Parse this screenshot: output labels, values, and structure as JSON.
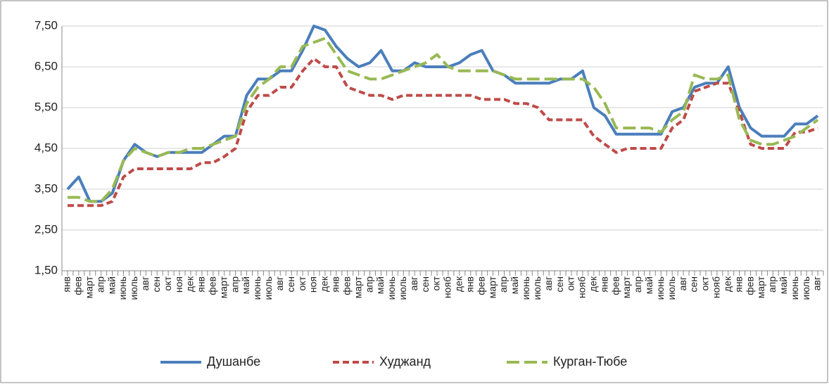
{
  "chart_data": {
    "type": "line",
    "categories": [
      "янв",
      "фев",
      "март",
      "апр",
      "май",
      "июнь",
      "июль",
      "авг",
      "сен",
      "окт",
      "ноя",
      "дек",
      "янв",
      "фев",
      "март",
      "апр",
      "май",
      "июнь",
      "июль",
      "авг",
      "сен",
      "окт",
      "ноя",
      "дек",
      "янв",
      "фев",
      "март",
      "апр",
      "май",
      "июнь",
      "июль",
      "авг",
      "сен",
      "окт",
      "нояб",
      "дек",
      "янв",
      "фев",
      "март",
      "апр",
      "май",
      "июнь",
      "июль",
      "авг",
      "сен",
      "окт",
      "нояб",
      "дек",
      "янв",
      "фев",
      "март",
      "апр",
      "май",
      "июнь",
      "июль",
      "авг",
      "сен",
      "окт",
      "нояб",
      "дек",
      "янв",
      "фев",
      "март",
      "апр",
      "май",
      "июнь",
      "июль",
      "авг"
    ],
    "series": [
      {
        "name": "Душанбе",
        "color": "#4a7ebb",
        "values": [
          3.5,
          3.8,
          3.2,
          3.2,
          3.4,
          4.2,
          4.6,
          4.4,
          4.3,
          4.4,
          4.4,
          4.4,
          4.4,
          4.6,
          4.8,
          4.8,
          5.8,
          6.2,
          6.2,
          6.4,
          6.4,
          6.9,
          7.5,
          7.4,
          7.0,
          6.7,
          6.5,
          6.6,
          6.9,
          6.4,
          6.4,
          6.6,
          6.5,
          6.5,
          6.5,
          6.6,
          6.8,
          6.9,
          6.4,
          6.3,
          6.1,
          6.1,
          6.1,
          6.1,
          6.2,
          6.2,
          6.4,
          5.5,
          5.3,
          4.85,
          4.85,
          4.85,
          4.85,
          4.85,
          5.4,
          5.5,
          6.0,
          6.1,
          6.1,
          6.5,
          5.5,
          5.0,
          4.8,
          4.8,
          4.8,
          5.1,
          5.1,
          5.3
        ]
      },
      {
        "name": "Худжанд",
        "color": "#be4b48",
        "values": [
          3.1,
          3.1,
          3.1,
          3.1,
          3.2,
          3.8,
          4.0,
          4.0,
          4.0,
          4.0,
          4.0,
          4.0,
          4.15,
          4.15,
          4.3,
          4.5,
          5.4,
          5.8,
          5.8,
          6.0,
          6.0,
          6.4,
          6.7,
          6.5,
          6.5,
          6.0,
          5.9,
          5.8,
          5.8,
          5.7,
          5.8,
          5.8,
          5.8,
          5.8,
          5.8,
          5.8,
          5.8,
          5.7,
          5.7,
          5.7,
          5.6,
          5.6,
          5.5,
          5.2,
          5.2,
          5.2,
          5.2,
          4.8,
          4.6,
          4.4,
          4.5,
          4.5,
          4.5,
          4.5,
          5.0,
          5.2,
          5.9,
          6.0,
          6.1,
          6.1,
          5.4,
          4.6,
          4.5,
          4.5,
          4.5,
          4.9,
          4.9,
          5.0
        ]
      },
      {
        "name": "Курган-Тюбе",
        "color": "#98b954",
        "values": [
          3.3,
          3.3,
          3.2,
          3.2,
          3.5,
          4.2,
          4.5,
          4.4,
          4.3,
          4.4,
          4.4,
          4.5,
          4.5,
          4.6,
          4.7,
          4.8,
          5.6,
          6.0,
          6.2,
          6.5,
          6.5,
          7.0,
          7.1,
          7.2,
          6.8,
          6.4,
          6.3,
          6.2,
          6.2,
          6.3,
          6.4,
          6.5,
          6.6,
          6.8,
          6.5,
          6.4,
          6.4,
          6.4,
          6.4,
          6.3,
          6.2,
          6.2,
          6.2,
          6.2,
          6.2,
          6.2,
          6.2,
          6.0,
          5.6,
          5.0,
          5.0,
          5.0,
          5.0,
          4.9,
          5.2,
          5.4,
          6.3,
          6.2,
          6.2,
          6.3,
          5.2,
          4.7,
          4.6,
          4.6,
          4.7,
          4.8,
          5.0,
          5.2
        ]
      }
    ],
    "ylim": [
      1.5,
      7.5
    ],
    "yticks": [
      {
        "value": 1.5,
        "label": "1,50"
      },
      {
        "value": 2.5,
        "label": "2,50"
      },
      {
        "value": 3.5,
        "label": "3,50"
      },
      {
        "value": 4.5,
        "label": "4,50"
      },
      {
        "value": 5.5,
        "label": "5,50"
      },
      {
        "value": 6.5,
        "label": "6,50"
      },
      {
        "value": 7.5,
        "label": "7,50"
      }
    ],
    "grid": true,
    "legend": "bottom"
  }
}
